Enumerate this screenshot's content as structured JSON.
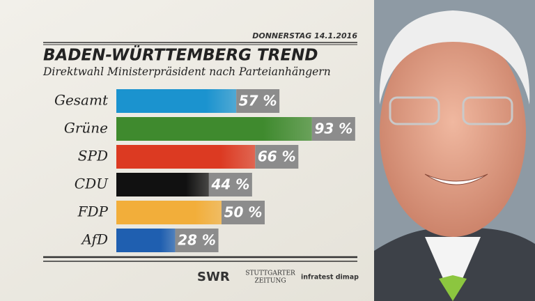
{
  "chart_data": {
    "type": "bar",
    "orientation": "horizontal",
    "date": "DONNERSTAG 14.1.2016",
    "title": "BADEN-WÜRTTEMBERG TREND",
    "subtitle": "Direktwahl Ministerpräsident nach Parteianhängern",
    "categories": [
      "Gesamt",
      "Grüne",
      "SPD",
      "CDU",
      "FDP",
      "AfD"
    ],
    "values": [
      57,
      93,
      66,
      44,
      50,
      28
    ],
    "value_labels": [
      "57 %",
      "93 %",
      "66 %",
      "44 %",
      "50 %",
      "28 %"
    ],
    "colors": [
      "#1b93cf",
      "#3f8a2e",
      "#dc3a22",
      "#111111",
      "#f2ae3a",
      "#1f5fb0"
    ],
    "sources": [
      "SWR",
      "STUTTGARTER",
      "ZEITUNG",
      "infratest dimap"
    ]
  }
}
